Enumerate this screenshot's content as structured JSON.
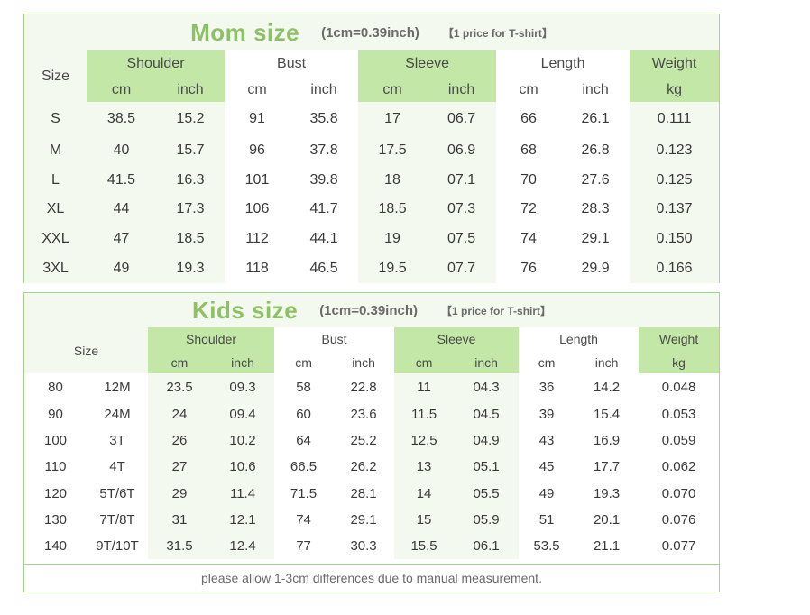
{
  "mom": {
    "title": "Mom size",
    "conversion": "(1cm=0.39inch)",
    "note": "【1 price for T-shirt】",
    "size_label": "Size",
    "groups": [
      "Shoulder",
      "Bust",
      "Sleeve",
      "Length",
      "Weight"
    ],
    "units": [
      "cm",
      "inch",
      "cm",
      "inch",
      "cm",
      "inch",
      "cm",
      "inch",
      "kg"
    ],
    "rows": [
      [
        "S",
        "38.5",
        "15.2",
        "91",
        "35.8",
        "17",
        "06.7",
        "66",
        "26.1",
        "0.111"
      ],
      [
        "M",
        "40",
        "15.7",
        "96",
        "37.8",
        "17.5",
        "06.9",
        "68",
        "26.8",
        "0.123"
      ],
      [
        "L",
        "41.5",
        "16.3",
        "101",
        "39.8",
        "18",
        "07.1",
        "70",
        "27.6",
        "0.125"
      ],
      [
        "XL",
        "44",
        "17.3",
        "106",
        "41.7",
        "18.5",
        "07.3",
        "72",
        "28.3",
        "0.137"
      ],
      [
        "XXL",
        "47",
        "18.5",
        "112",
        "44.1",
        "19",
        "07.5",
        "74",
        "29.1",
        "0.150"
      ],
      [
        "3XL",
        "49",
        "19.3",
        "118",
        "46.5",
        "19.5",
        "07.7",
        "76",
        "29.9",
        "0.166"
      ]
    ]
  },
  "kids": {
    "title": "Kids size",
    "conversion": "(1cm=0.39inch)",
    "note": "【1 price for T-shirt】",
    "size_label": "Size",
    "groups": [
      "Shoulder",
      "Bust",
      "Sleeve",
      "Length",
      "Weight"
    ],
    "units": [
      "cm",
      "inch",
      "cm",
      "inch",
      "cm",
      "inch",
      "cm",
      "inch",
      "kg"
    ],
    "rows": [
      [
        "80",
        "12M",
        "23.5",
        "09.3",
        "58",
        "22.8",
        "11",
        "04.3",
        "36",
        "14.2",
        "0.048"
      ],
      [
        "90",
        "24M",
        "24",
        "09.4",
        "60",
        "23.6",
        "11.5",
        "04.5",
        "39",
        "15.4",
        "0.053"
      ],
      [
        "100",
        "3T",
        "26",
        "10.2",
        "64",
        "25.2",
        "12.5",
        "04.9",
        "43",
        "16.9",
        "0.059"
      ],
      [
        "110",
        "4T",
        "27",
        "10.6",
        "66.5",
        "26.2",
        "13",
        "05.1",
        "45",
        "17.7",
        "0.062"
      ],
      [
        "120",
        "5T/6T",
        "29",
        "11.4",
        "71.5",
        "28.1",
        "14",
        "05.5",
        "49",
        "19.3",
        "0.070"
      ],
      [
        "130",
        "7T/8T",
        "31",
        "12.1",
        "74",
        "29.1",
        "15",
        "05.9",
        "51",
        "20.1",
        "0.076"
      ],
      [
        "140",
        "9T/10T",
        "31.5",
        "12.4",
        "77",
        "30.3",
        "15.5",
        "06.1",
        "53.5",
        "21.1",
        "0.077"
      ]
    ],
    "footnote": "please allow 1-3cm differences due to manual measurement."
  },
  "colors": {
    "green_header": "#c3e7a7",
    "light_band": "#f4f9ef",
    "border": "#a6d38a",
    "title_green": "#8cc265"
  }
}
